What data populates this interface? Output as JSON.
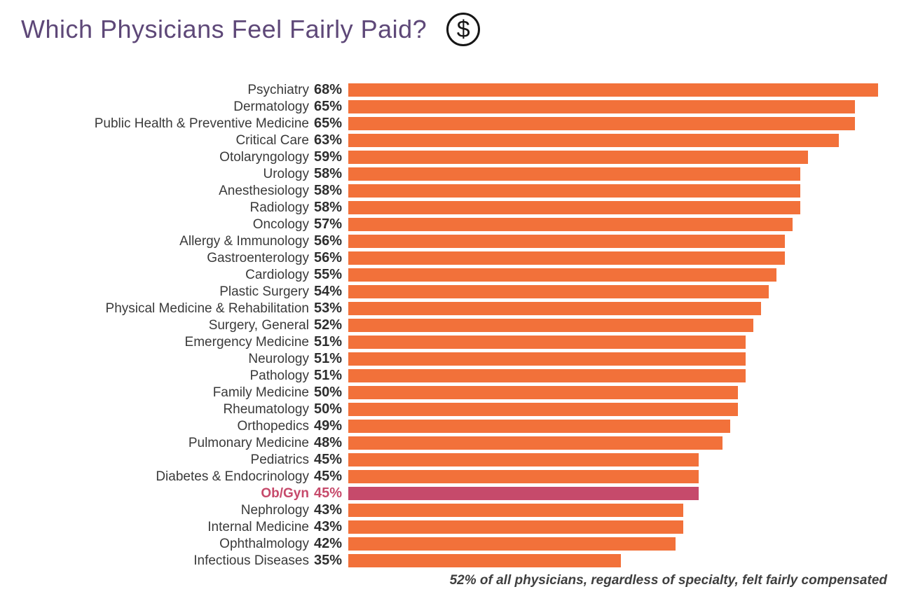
{
  "title": "Which Physicians Feel Fairly Paid?",
  "icons": {
    "dollar_icon_glyph": "$"
  },
  "footer_note": "52% of all physicians, regardless of specialty, felt fairly compensated",
  "colors": {
    "bar": "#F2713A",
    "highlight": "#C64A6B",
    "title": "#5E4878",
    "label": "#3A3A3A",
    "footer": "#3F3F3F"
  },
  "chart_data": {
    "type": "bar",
    "orientation": "horizontal",
    "title": "Which Physicians Feel Fairly Paid?",
    "annotation": "52% of all physicians, regardless of specialty, felt fairly compensated",
    "value_suffix": "%",
    "max_value": 68,
    "axis_range": [
      0,
      68
    ],
    "grid": false,
    "legend": false,
    "highlight_category": "Ob/Gyn",
    "categories": [
      "Psychiatry",
      "Dermatology",
      "Public Health & Preventive Medicine",
      "Critical Care",
      "Otolaryngology",
      "Urology",
      "Anesthesiology",
      "Radiology",
      "Oncology",
      "Allergy & Immunology",
      "Gastroenterology",
      "Cardiology",
      "Plastic Surgery",
      "Physical Medicine & Rehabilitation",
      "Surgery, General",
      "Emergency Medicine",
      "Neurology",
      "Pathology",
      "Family Medicine",
      "Rheumatology",
      "Orthopedics",
      "Pulmonary Medicine",
      "Pediatrics",
      "Diabetes & Endocrinology",
      "Ob/Gyn",
      "Nephrology",
      "Internal Medicine",
      "Ophthalmology",
      "Infectious Diseases"
    ],
    "values": [
      68,
      65,
      65,
      63,
      59,
      58,
      58,
      58,
      57,
      56,
      56,
      55,
      54,
      53,
      52,
      51,
      51,
      51,
      50,
      50,
      49,
      48,
      45,
      45,
      45,
      43,
      43,
      42,
      35
    ]
  }
}
